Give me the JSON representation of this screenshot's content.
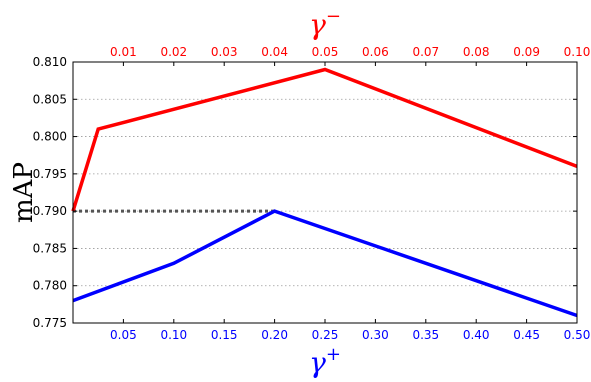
{
  "chart_data": {
    "type": "line",
    "ylabel": "mAP",
    "ylim": [
      0.775,
      0.81
    ],
    "y_ticks": [
      "0.775",
      "0.780",
      "0.785",
      "0.790",
      "0.795",
      "0.800",
      "0.805",
      "0.810"
    ],
    "grid": "horizontal dotted",
    "bottom_axis": {
      "label_symbol": "γ",
      "label_sup": "+",
      "color": "#0000ff",
      "xlim": [
        0.0,
        0.5
      ],
      "ticks": [
        "0.05",
        "0.10",
        "0.15",
        "0.20",
        "0.25",
        "0.30",
        "0.35",
        "0.40",
        "0.45",
        "0.50"
      ]
    },
    "top_axis": {
      "label_symbol": "γ",
      "label_sup": "−",
      "color": "#ff0000",
      "xlim": [
        0.0,
        0.1
      ],
      "ticks": [
        "0.01",
        "0.02",
        "0.03",
        "0.04",
        "0.05",
        "0.06",
        "0.07",
        "0.08",
        "0.09",
        "0.10"
      ]
    },
    "series": [
      {
        "axis": "top",
        "color": "#ff0000",
        "x": [
          0.0,
          0.005,
          0.05,
          0.1
        ],
        "y": [
          0.79,
          0.801,
          0.809,
          0.796
        ]
      },
      {
        "axis": "bottom",
        "color": "#0000ff",
        "x": [
          0.0,
          0.1,
          0.2,
          0.5
        ],
        "y": [
          0.778,
          0.783,
          0.79,
          0.776
        ]
      }
    ],
    "reference_line": {
      "style": "dotted",
      "color": "#555555",
      "x_bottom": [
        0.0,
        0.2
      ],
      "y": 0.79
    }
  }
}
